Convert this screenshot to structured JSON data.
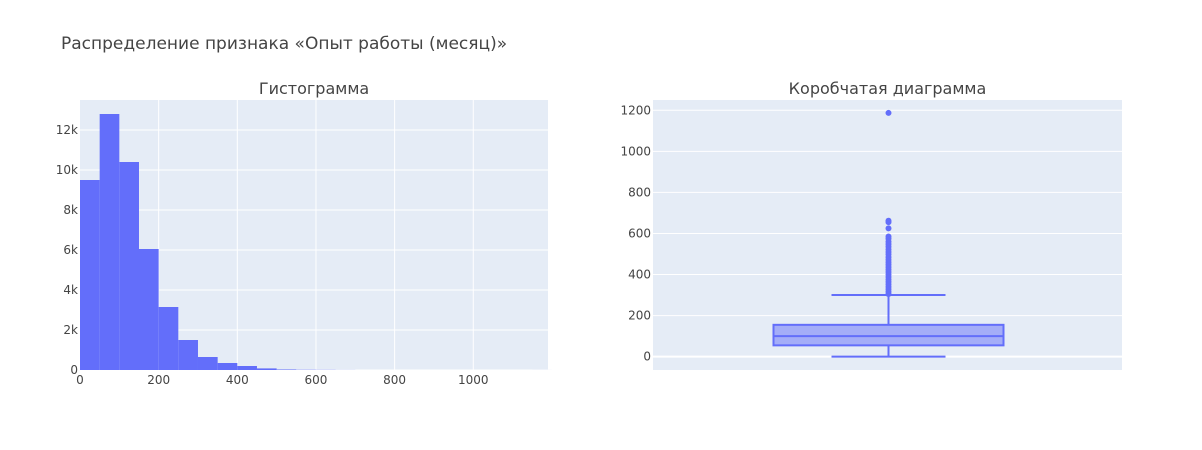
{
  "title": "Распределение признака «Опыт работы (месяц)»",
  "colors": {
    "accent": "#636efa",
    "plot_bg": "#e5ecf6",
    "grid": "#ffffff",
    "text": "#444444"
  },
  "chart_data": [
    {
      "type": "bar",
      "subtitle": "Гистограмма",
      "bin_width": 50,
      "bins": [
        {
          "x0": 0,
          "x1": 50,
          "count": 9500
        },
        {
          "x0": 50,
          "x1": 100,
          "count": 12800
        },
        {
          "x0": 100,
          "x1": 150,
          "count": 10400
        },
        {
          "x0": 150,
          "x1": 200,
          "count": 6050
        },
        {
          "x0": 200,
          "x1": 250,
          "count": 3150
        },
        {
          "x0": 250,
          "x1": 300,
          "count": 1500
        },
        {
          "x0": 300,
          "x1": 350,
          "count": 650
        },
        {
          "x0": 350,
          "x1": 400,
          "count": 350
        },
        {
          "x0": 400,
          "x1": 450,
          "count": 200
        },
        {
          "x0": 450,
          "x1": 500,
          "count": 80
        },
        {
          "x0": 500,
          "x1": 550,
          "count": 25
        },
        {
          "x0": 550,
          "x1": 600,
          "count": 12
        },
        {
          "x0": 600,
          "x1": 650,
          "count": 8
        },
        {
          "x0": 650,
          "x1": 700,
          "count": 3
        },
        {
          "x0": 1150,
          "x1": 1200,
          "count": 1
        }
      ],
      "xlim": [
        0,
        1190
      ],
      "ylim": [
        0,
        13500
      ],
      "xticks": [
        {
          "v": 0,
          "label": "0"
        },
        {
          "v": 200,
          "label": "200"
        },
        {
          "v": 400,
          "label": "400"
        },
        {
          "v": 600,
          "label": "600"
        },
        {
          "v": 800,
          "label": "800"
        },
        {
          "v": 1000,
          "label": "1000"
        }
      ],
      "yticks": [
        {
          "v": 0,
          "label": "0"
        },
        {
          "v": 2000,
          "label": "2k"
        },
        {
          "v": 4000,
          "label": "4k"
        },
        {
          "v": 6000,
          "label": "6k"
        },
        {
          "v": 8000,
          "label": "8k"
        },
        {
          "v": 10000,
          "label": "10k"
        },
        {
          "v": 12000,
          "label": "12k"
        }
      ],
      "grid": true
    },
    {
      "type": "box",
      "subtitle": "Коробчатая диаграмма",
      "stats": {
        "min": 0,
        "q1": 55,
        "median": 100,
        "q3": 155,
        "upper_fence": 300
      },
      "outliers": [
        1187,
        662,
        655,
        625,
        585,
        575,
        560,
        548,
        535,
        522,
        510,
        498,
        485,
        472,
        460,
        448,
        436,
        424,
        412,
        400,
        388,
        376,
        364,
        352,
        340,
        328,
        316,
        305
      ],
      "ylim": [
        -65,
        1250
      ],
      "yticks": [
        {
          "v": 0,
          "label": "0"
        },
        {
          "v": 200,
          "label": "200"
        },
        {
          "v": 400,
          "label": "400"
        },
        {
          "v": 600,
          "label": "600"
        },
        {
          "v": 800,
          "label": "800"
        },
        {
          "v": 1000,
          "label": "1000"
        },
        {
          "v": 1200,
          "label": "1200"
        }
      ],
      "grid": true
    }
  ]
}
